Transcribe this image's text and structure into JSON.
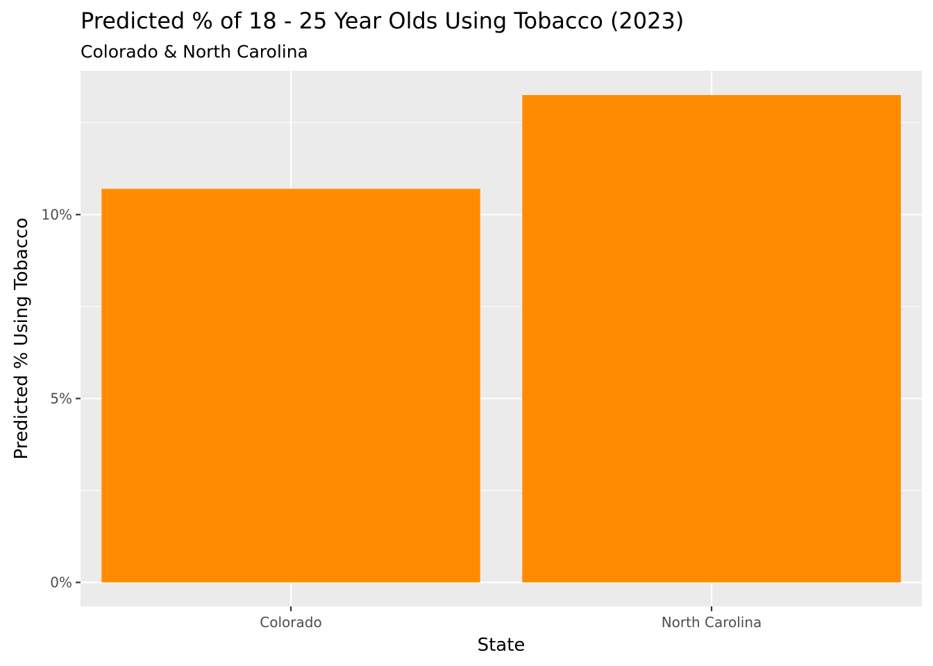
{
  "chart_data": {
    "type": "bar",
    "title": "Predicted % of 18 - 25 Year Olds Using Tobacco (2023)",
    "subtitle": "Colorado & North Carolina",
    "xlabel": "State",
    "ylabel": "Predicted % Using Tobacco",
    "categories": [
      "Colorado",
      "North Carolina"
    ],
    "values": [
      10.7,
      13.25
    ],
    "ylim": [
      -0.65,
      13.91
    ],
    "y_ticks": [
      0,
      5,
      10
    ],
    "y_tick_labels": [
      "0%",
      "5%",
      "10%"
    ],
    "grid": true,
    "legend": "none",
    "colors": {
      "bar": "#FF8C00",
      "panel_background": "#EBEBEB",
      "grid_line": "#FFFFFF",
      "tick_label": "#4D4D4D",
      "tick_mark": "#333333"
    }
  }
}
